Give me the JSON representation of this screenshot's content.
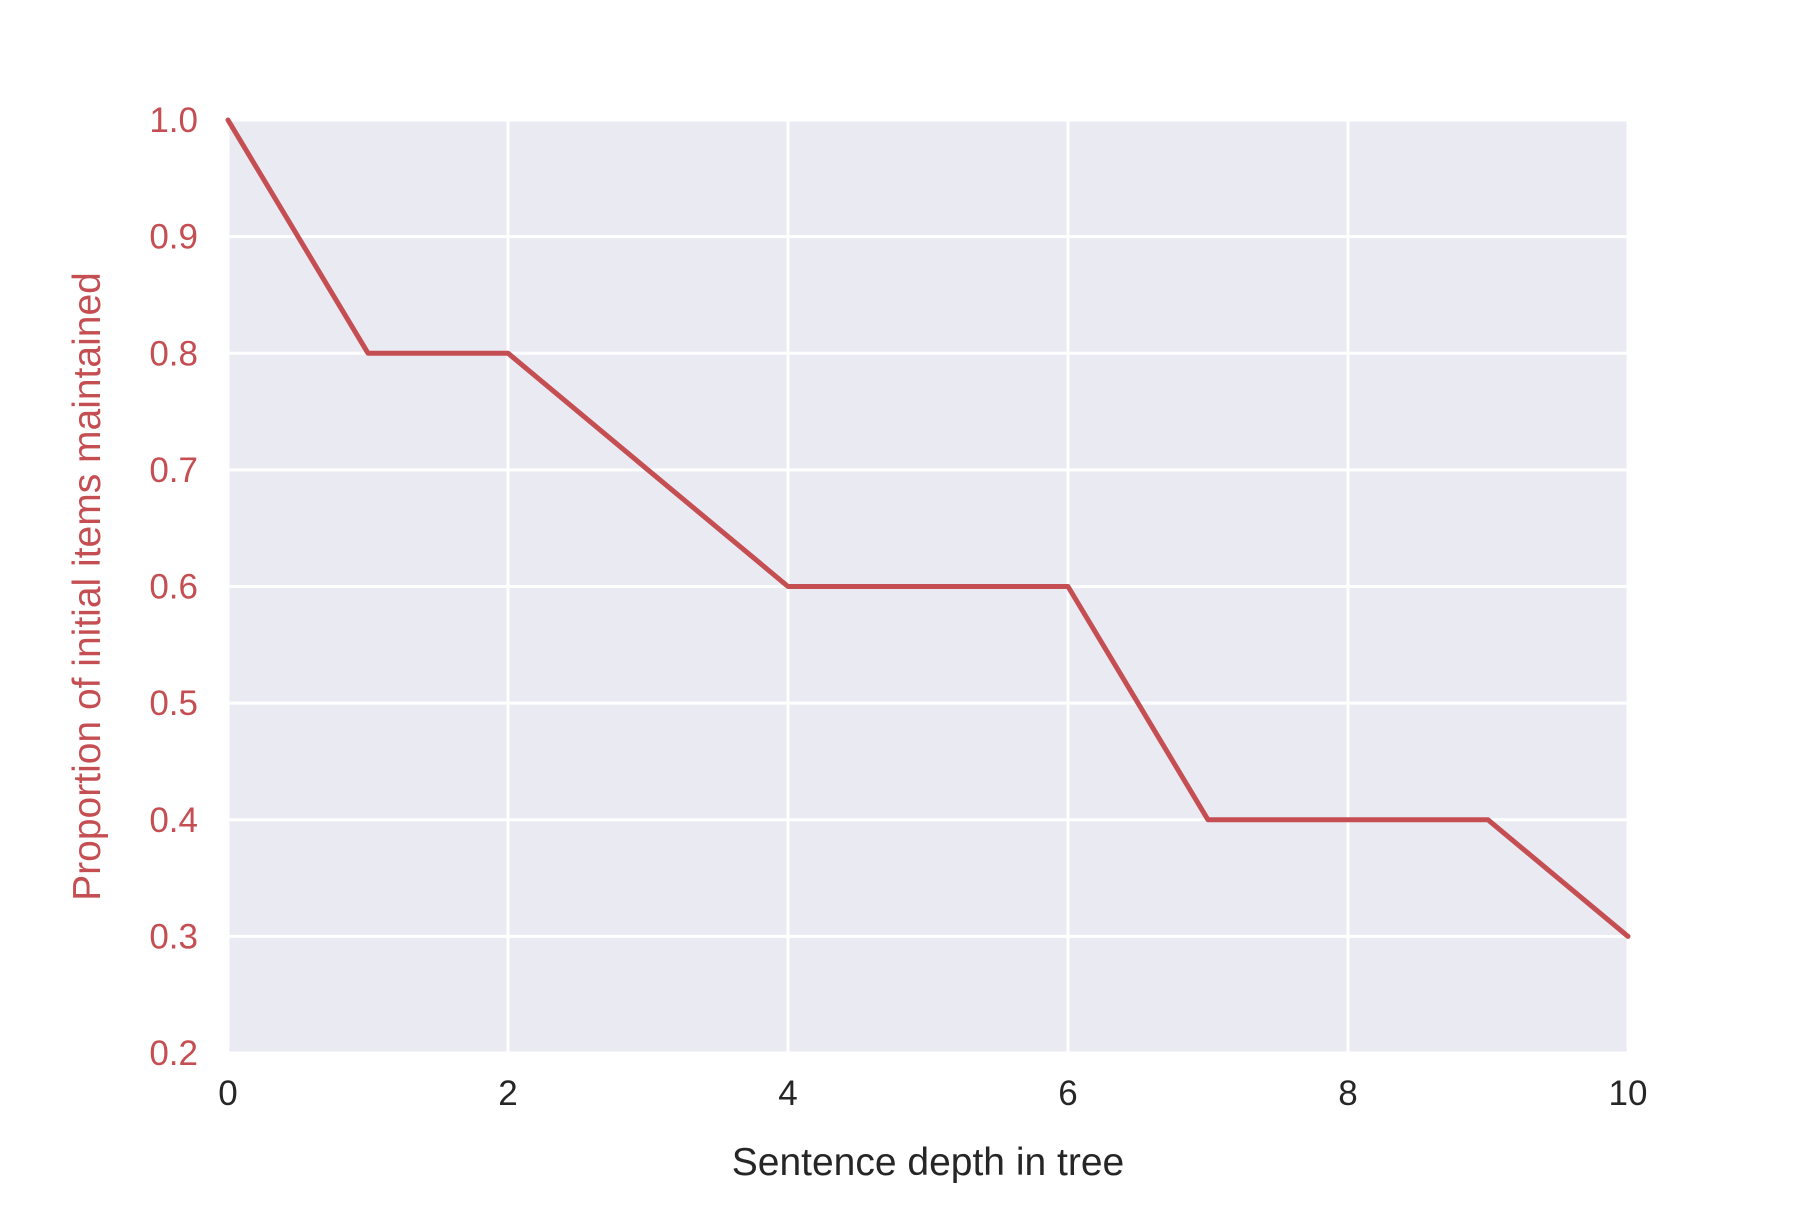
{
  "chart_data": {
    "type": "line",
    "title": "",
    "xlabel": "Sentence depth in tree",
    "ylabel": "Proportion of initial items maintained",
    "xlim": [
      0,
      10
    ],
    "ylim": [
      0.2,
      1.0
    ],
    "x_ticks": [
      0,
      2,
      4,
      6,
      8,
      10
    ],
    "x_tick_labels": [
      "0",
      "2",
      "4",
      "6",
      "8",
      "10"
    ],
    "y_ticks": [
      0.2,
      0.3,
      0.4,
      0.5,
      0.6,
      0.7,
      0.8,
      0.9,
      1.0
    ],
    "y_tick_labels": [
      "0.2",
      "0.3",
      "0.4",
      "0.5",
      "0.6",
      "0.7",
      "0.8",
      "0.9",
      "1.0"
    ],
    "grid": true,
    "legend": "none",
    "colors": {
      "series": "#c44e52",
      "ylabel": "#c44e52",
      "ytick": "#c44e52",
      "xtick": "#262626",
      "xlabel": "#262626",
      "plot_bg": "#eaeaf2",
      "grid": "#ffffff"
    },
    "series": [
      {
        "x": [
          0,
          1,
          2,
          3,
          4,
          5,
          6,
          7,
          8,
          9,
          10
        ],
        "values": [
          1.0,
          0.8,
          0.8,
          0.7,
          0.6,
          0.6,
          0.6,
          0.4,
          0.4,
          0.4,
          0.3
        ]
      }
    ]
  }
}
